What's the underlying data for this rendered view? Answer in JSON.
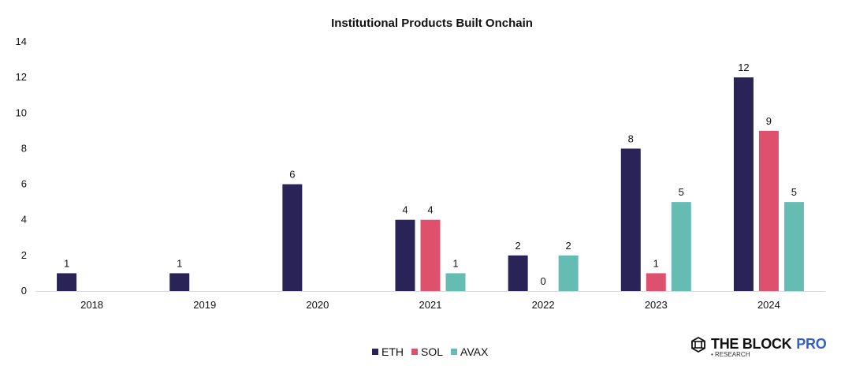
{
  "chart_data": {
    "type": "bar",
    "title": "Institutional Products Built Onchain",
    "xlabel": "",
    "ylabel": "",
    "categories": [
      "2018",
      "2019",
      "2020",
      "2021",
      "2022",
      "2023",
      "2024"
    ],
    "series": [
      {
        "name": "ETH",
        "color": "#2a2357",
        "values": [
          1,
          1,
          6,
          4,
          2,
          8,
          12
        ]
      },
      {
        "name": "SOL",
        "color": "#de516c",
        "values": [
          null,
          null,
          null,
          4,
          0,
          1,
          9
        ]
      },
      {
        "name": "AVAX",
        "color": "#65bcb3",
        "values": [
          null,
          null,
          null,
          1,
          2,
          5,
          5
        ]
      }
    ],
    "ylim": [
      0,
      14
    ],
    "yticks": [
      0,
      2,
      4,
      6,
      8,
      10,
      12,
      14
    ],
    "grid": false,
    "legend": "bottom-center",
    "data_labels": true
  },
  "branding": {
    "logo_text": "THE BLOCK",
    "logo_accent": "PRO",
    "logo_sub": "• RESEARCH"
  }
}
